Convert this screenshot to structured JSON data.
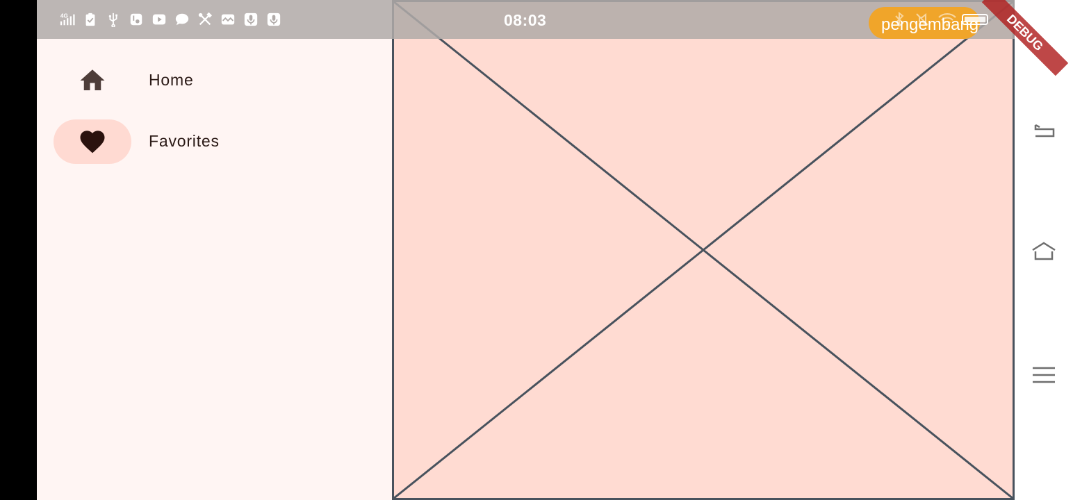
{
  "status_bar": {
    "time": "08:03",
    "notification_text": "pengembang",
    "network_label": "4G",
    "icons": [
      "signal-4g-icon",
      "clipboard-check-icon",
      "usb-icon",
      "sim-settings-icon",
      "youtube-icon",
      "chat-bubble-icon",
      "tools-icon",
      "mail-icon",
      "mic-icon",
      "mic-icon",
      "bluetooth-icon",
      "mute-icon",
      "wifi-icon",
      "battery-icon"
    ]
  },
  "drawer": {
    "items": [
      {
        "label": "Home",
        "icon": "home-icon",
        "selected": false
      },
      {
        "label": "Favorites",
        "icon": "heart-icon",
        "selected": true
      }
    ]
  },
  "debug_banner": {
    "label": "DEBUG"
  },
  "system_nav": {
    "buttons": [
      "back-icon",
      "home-icon",
      "menu-icon"
    ]
  },
  "colors": {
    "drawer_bg": "#fff5f3",
    "placeholder_bg": "#ffdbd2",
    "indicator": "#ffdad2",
    "notification_pill": "#f0a52a",
    "debug_ribbon": "#b01f1f"
  }
}
